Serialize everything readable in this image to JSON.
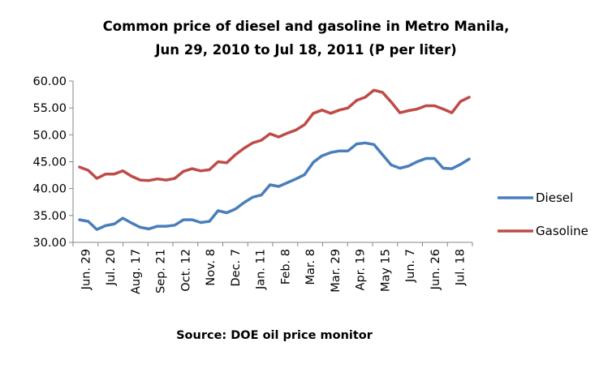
{
  "chart_data": {
    "type": "line",
    "title_line1": "Common price of diesel and gasoline in Metro Manila,",
    "title_line2": "Jun 29, 2010 to Jul 18, 2011 (P per liter)",
    "source": "Source: DOE oil price monitor",
    "xlabel": "",
    "ylabel": "",
    "ylim": [
      30,
      60
    ],
    "yticks": [
      "30.00",
      "35.00",
      "40.00",
      "45.00",
      "50.00",
      "55.00",
      "60.00"
    ],
    "xtick_labels": [
      "Jun. 29",
      "Jul. 20",
      "Aug. 17",
      "Sep. 21",
      "Oct. 12",
      "Nov. 8",
      "Dec. 7",
      "Jan. 11",
      "Feb. 8",
      "Mar. 8",
      "Mar. 29",
      "Apr. 19",
      "May 15",
      "Jun. 7",
      "Jun. 26",
      "Jul. 18"
    ],
    "grid": false,
    "legend_position": "right",
    "series": [
      {
        "name": "Diesel",
        "color": "#4a7ebb",
        "values": [
          34.2,
          33.9,
          32.4,
          33.1,
          33.4,
          34.5,
          33.6,
          32.8,
          32.5,
          33.0,
          33.0,
          33.2,
          34.2,
          34.2,
          33.7,
          33.9,
          35.9,
          35.5,
          36.2,
          37.4,
          38.4,
          38.8,
          40.7,
          40.4,
          41.1,
          41.8,
          42.6,
          44.9,
          46.1,
          46.7,
          47.0,
          47.0,
          48.3,
          48.5,
          48.2,
          46.3,
          44.4,
          43.8,
          44.2,
          45.0,
          45.6,
          45.6,
          43.8,
          43.7,
          44.5,
          45.5
        ]
      },
      {
        "name": "Gasoline",
        "color": "#be4b48",
        "values": [
          44.0,
          43.4,
          41.9,
          42.7,
          42.7,
          43.3,
          42.3,
          41.6,
          41.5,
          41.8,
          41.6,
          41.9,
          43.2,
          43.7,
          43.3,
          43.5,
          45.0,
          44.8,
          46.3,
          47.5,
          48.5,
          49.0,
          50.2,
          49.6,
          50.3,
          50.9,
          51.9,
          54.0,
          54.6,
          54.0,
          54.6,
          55.0,
          56.4,
          57.0,
          58.3,
          57.9,
          56.1,
          54.1,
          54.5,
          54.8,
          55.4,
          55.4,
          54.8,
          54.1,
          56.2,
          57.0
        ]
      }
    ]
  }
}
